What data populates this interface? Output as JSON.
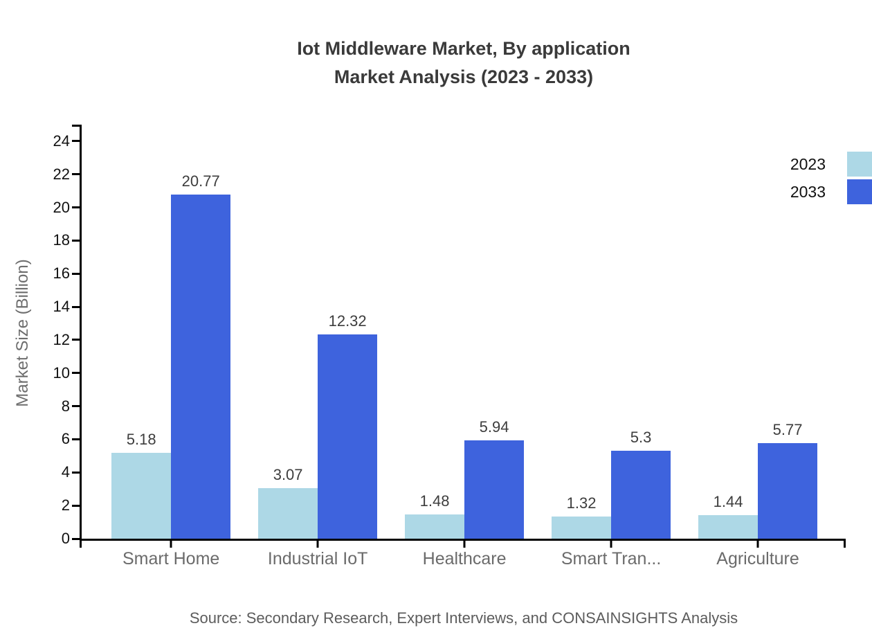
{
  "title": {
    "line1": "Iot Middleware Market, By application",
    "line2": "Market Analysis (2023 - 2033)"
  },
  "legend": {
    "items": [
      {
        "label": "2023",
        "color": "#ADD8E6"
      },
      {
        "label": "2033",
        "color": "#3E63DD"
      }
    ]
  },
  "source": "Source: Secondary Research, Expert Interviews, and CONSAINSIGHTS Analysis",
  "colors": {
    "axis": "#000000",
    "title_text": "#3a3a3a",
    "tick_label": "#111111",
    "category_label": "#6b6b6b",
    "value_label": "#3d3d3d",
    "axis_title": "#6e6e6e",
    "source_text": "#5c5c5c",
    "series_2023": "#ADD8E6",
    "series_2033": "#3E63DD"
  },
  "chart_data": {
    "type": "bar",
    "title": "Iot Middleware Market, By application Market Analysis (2023 - 2033)",
    "categories": [
      "Smart Home",
      "Industrial IoT",
      "Healthcare",
      "Smart Tran...",
      "Agriculture"
    ],
    "series": [
      {
        "name": "2023",
        "color": "#ADD8E6",
        "values": [
          5.18,
          3.07,
          1.48,
          1.32,
          1.44
        ]
      },
      {
        "name": "2033",
        "color": "#3E63DD",
        "values": [
          20.77,
          12.32,
          5.94,
          5.3,
          5.77
        ]
      }
    ],
    "value_labels": [
      [
        "5.18",
        "3.07",
        "1.48",
        "1.32",
        "1.44"
      ],
      [
        "20.77",
        "12.32",
        "5.94",
        "5.3",
        "5.77"
      ]
    ],
    "xlabel": "",
    "ylabel": "Market Size (Billion)",
    "ylim": [
      0,
      25
    ],
    "yticks": [
      0,
      2,
      4,
      6,
      8,
      10,
      12,
      14,
      16,
      18,
      20,
      22,
      24
    ],
    "grid": false,
    "legend_position": "top-right",
    "bar_value_labels_shown": true
  }
}
